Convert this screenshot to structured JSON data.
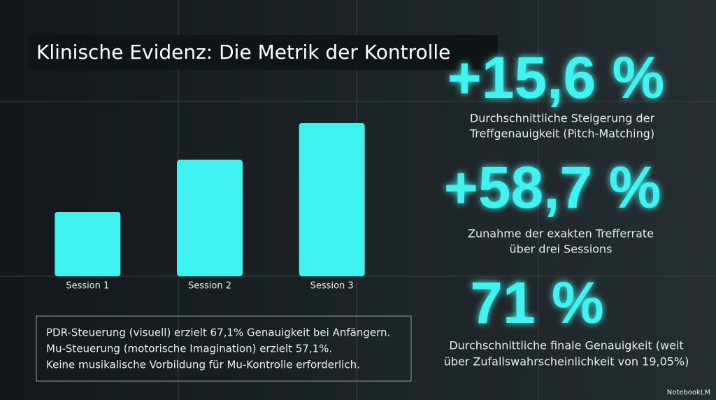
{
  "title": "Klinische Evidenz: Die Metrik der Kontrolle",
  "chart_data": {
    "type": "bar",
    "categories": [
      "Session 1",
      "Session 2",
      "Session 3"
    ],
    "values": [
      42,
      76,
      100
    ],
    "color": "#3ff2f0",
    "ylim": [
      0,
      100
    ]
  },
  "stats": [
    {
      "value": "+15,6 %",
      "caption": [
        "Durchschnittliche Steigerung der",
        "Treffgenauigkeit (Pitch-Matching)"
      ]
    },
    {
      "value": "+58,7 %",
      "caption": [
        "Zunahme der exakten Trefferrate",
        "über drei Sessions"
      ]
    },
    {
      "value": "71 %",
      "caption": [
        "Durchschnittliche finale Genauigkeit (weit",
        "über Zufallswahrscheinlichkeit von 19,05%)"
      ]
    }
  ],
  "notes": [
    "PDR-Steuerung (visuell) erzielt 67,1% Genauigkeit bei Anfängern.",
    "Mu-Steuerung (motorische Imagination) erzielt 57,1%.",
    "Keine musikalische Vorbildung für Mu-Kontrolle erforderlich."
  ],
  "brand": "NotebookLM"
}
